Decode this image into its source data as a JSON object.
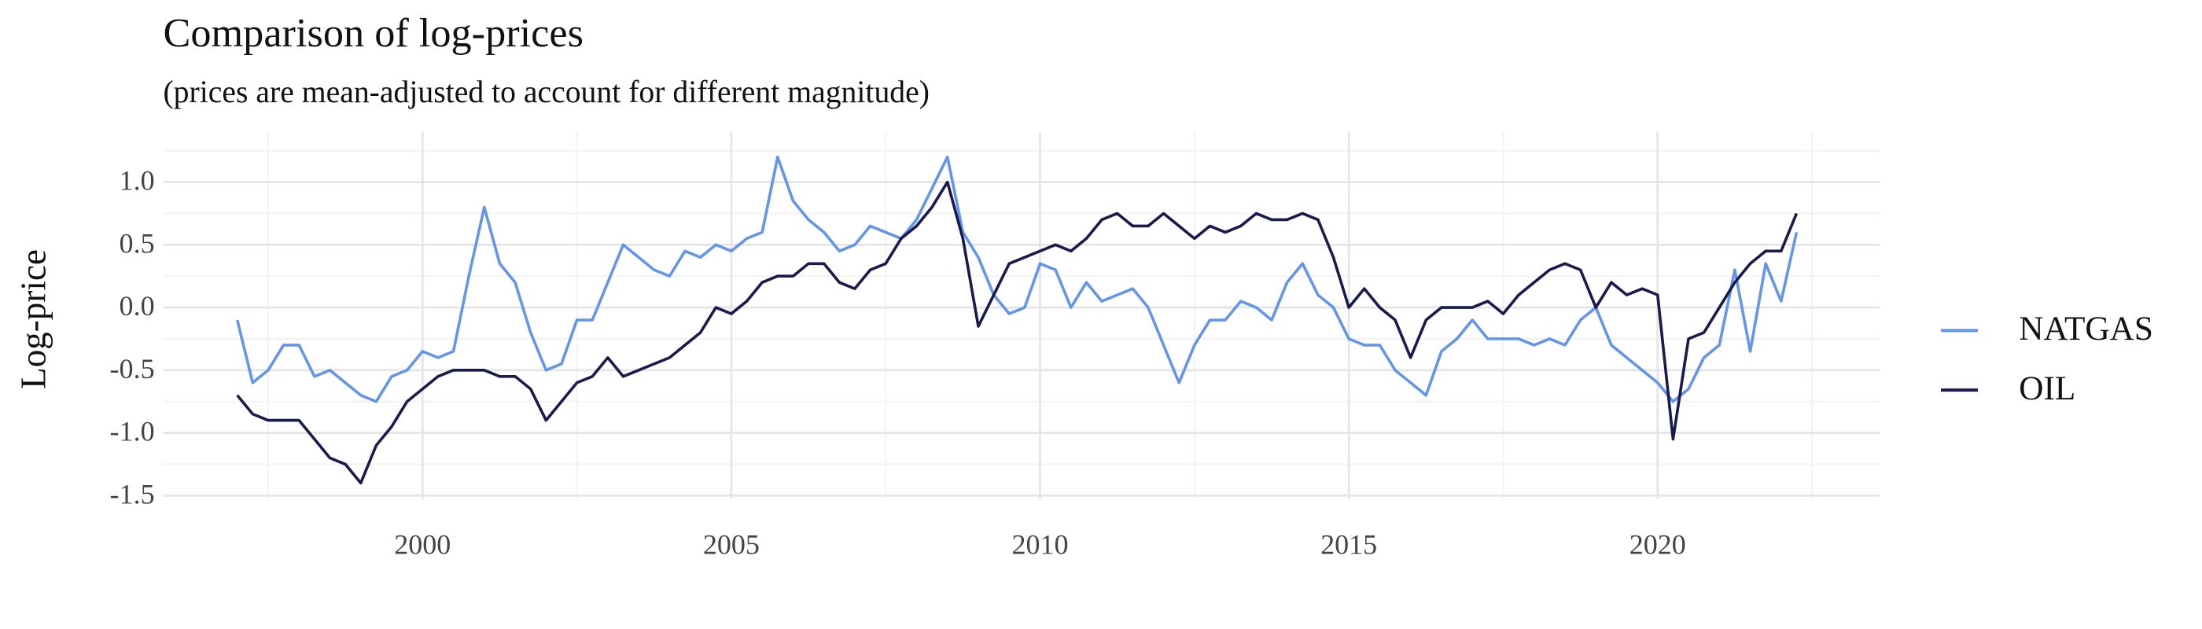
{
  "chart_data": {
    "type": "line",
    "title": "Comparison of log-prices",
    "subtitle": "(prices are mean-adjusted to account for different magnitude)",
    "y_label": "Log-price",
    "x": [
      1997.0,
      1997.25,
      1997.5,
      1997.75,
      1998.0,
      1998.25,
      1998.5,
      1998.75,
      1999.0,
      1999.25,
      1999.5,
      1999.75,
      2000.0,
      2000.25,
      2000.5,
      2000.75,
      2001.0,
      2001.25,
      2001.5,
      2001.75,
      2002.0,
      2002.25,
      2002.5,
      2002.75,
      2003.0,
      2003.25,
      2003.5,
      2003.75,
      2004.0,
      2004.25,
      2004.5,
      2004.75,
      2005.0,
      2005.25,
      2005.5,
      2005.75,
      2006.0,
      2006.25,
      2006.5,
      2006.75,
      2007.0,
      2007.25,
      2007.5,
      2007.75,
      2008.0,
      2008.25,
      2008.5,
      2008.75,
      2009.0,
      2009.25,
      2009.5,
      2009.75,
      2010.0,
      2010.25,
      2010.5,
      2010.75,
      2011.0,
      2011.25,
      2011.5,
      2011.75,
      2012.0,
      2012.25,
      2012.5,
      2012.75,
      2013.0,
      2013.25,
      2013.5,
      2013.75,
      2014.0,
      2014.25,
      2014.5,
      2014.75,
      2015.0,
      2015.25,
      2015.5,
      2015.75,
      2016.0,
      2016.25,
      2016.5,
      2016.75,
      2017.0,
      2017.25,
      2017.5,
      2017.75,
      2018.0,
      2018.25,
      2018.5,
      2018.75,
      2019.0,
      2019.25,
      2019.5,
      2019.75,
      2020.0,
      2020.25,
      2020.5,
      2020.75,
      2021.0,
      2021.25,
      2021.5,
      2021.75,
      2022.0,
      2022.25
    ],
    "series": [
      {
        "name": "NATGAS",
        "color": "#6495ED",
        "values": [
          -0.1,
          -0.6,
          -0.5,
          -0.3,
          -0.3,
          -0.55,
          -0.5,
          -0.6,
          -0.7,
          -0.75,
          -0.55,
          -0.5,
          -0.35,
          -0.4,
          -0.35,
          0.25,
          0.8,
          0.35,
          0.2,
          -0.2,
          -0.5,
          -0.45,
          -0.1,
          -0.1,
          0.2,
          0.5,
          0.4,
          0.3,
          0.25,
          0.45,
          0.4,
          0.5,
          0.45,
          0.55,
          0.6,
          1.2,
          0.85,
          0.7,
          0.6,
          0.45,
          0.5,
          0.65,
          0.6,
          0.55,
          0.7,
          0.95,
          1.2,
          0.6,
          0.4,
          0.1,
          -0.05,
          0.0,
          0.35,
          0.3,
          0.0,
          0.2,
          0.05,
          0.1,
          0.15,
          0.0,
          -0.3,
          -0.6,
          -0.3,
          -0.1,
          -0.1,
          0.05,
          0.0,
          -0.1,
          0.2,
          0.35,
          0.1,
          0.0,
          -0.25,
          -0.3,
          -0.3,
          -0.5,
          -0.6,
          -0.7,
          -0.35,
          -0.25,
          -0.1,
          -0.25,
          -0.25,
          -0.25,
          -0.3,
          -0.25,
          -0.3,
          -0.1,
          0.0,
          -0.3,
          -0.4,
          -0.5,
          -0.6,
          -0.75,
          -0.65,
          -0.4,
          -0.3,
          0.3,
          -0.35,
          0.35,
          0.05,
          0.6
        ]
      },
      {
        "name": "OIL",
        "color": "#191a4d",
        "values": [
          -0.7,
          -0.85,
          -0.9,
          -0.9,
          -0.9,
          -1.05,
          -1.2,
          -1.25,
          -1.4,
          -1.1,
          -0.95,
          -0.75,
          -0.65,
          -0.55,
          -0.5,
          -0.5,
          -0.5,
          -0.55,
          -0.55,
          -0.65,
          -0.9,
          -0.75,
          -0.6,
          -0.55,
          -0.4,
          -0.55,
          -0.5,
          -0.45,
          -0.4,
          -0.3,
          -0.2,
          0.0,
          -0.05,
          0.05,
          0.2,
          0.25,
          0.25,
          0.35,
          0.35,
          0.2,
          0.15,
          0.3,
          0.35,
          0.55,
          0.65,
          0.8,
          1.0,
          0.55,
          -0.15,
          0.1,
          0.35,
          0.4,
          0.45,
          0.5,
          0.45,
          0.55,
          0.7,
          0.75,
          0.65,
          0.65,
          0.75,
          0.65,
          0.55,
          0.65,
          0.6,
          0.65,
          0.75,
          0.7,
          0.7,
          0.75,
          0.7,
          0.4,
          0.0,
          0.15,
          0.0,
          -0.1,
          -0.4,
          -0.1,
          0.0,
          0.0,
          0.0,
          0.05,
          -0.05,
          0.1,
          0.2,
          0.3,
          0.35,
          0.3,
          0.0,
          0.2,
          0.1,
          0.15,
          0.1,
          -1.05,
          -0.25,
          -0.2,
          0.0,
          0.2,
          0.35,
          0.45,
          0.45,
          0.75
        ]
      }
    ],
    "xlim": [
      1995.8,
      2023.6
    ],
    "ylim": [
      -1.53,
      1.4
    ],
    "xticks": [
      2000,
      2005,
      2010,
      2015,
      2020
    ],
    "yticks": [
      -1.5,
      {
        "value": -1,
        "label": "-1.0"
      },
      -0.5,
      {
        "value": 0,
        "label": "0.0"
      },
      0.5,
      {
        "value": 1,
        "label": "1.0"
      }
    ],
    "grid": true,
    "legend": "right"
  }
}
